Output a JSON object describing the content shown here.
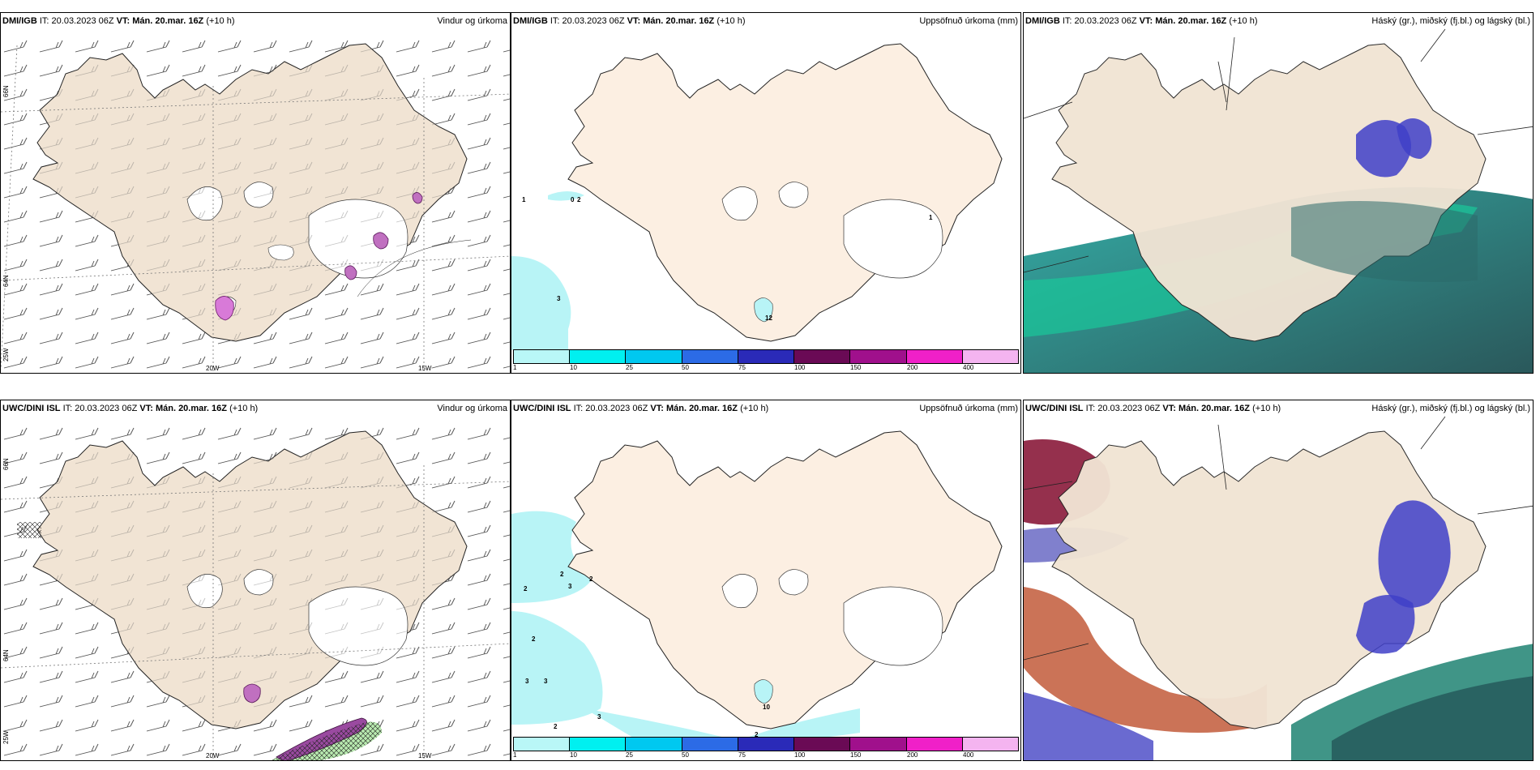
{
  "rows": [
    {
      "model": "DMI/IGB",
      "it_label": "IT:",
      "it_value": "20.03.2023 06Z",
      "vt_label": "VT:",
      "vt_value": "Mán. 20.mar. 16Z",
      "lead": "(+10 h)"
    },
    {
      "model": "UWC/DINI ISL",
      "it_label": "IT:",
      "it_value": "20.03.2023 06Z",
      "vt_label": "VT:",
      "vt_value": "Mán. 20.mar. 16Z",
      "lead": "(+10 h)"
    }
  ],
  "columns": [
    {
      "title": "Vindur og úrkoma"
    },
    {
      "title": "Uppsöfnuð úrkoma (mm)"
    },
    {
      "title": "Háský (gr.), miðský (fj.bl.) og lágský (bl.)"
    }
  ],
  "graticule": {
    "lon_a": "20W",
    "lon_b": "15W",
    "lat_a": "66N",
    "lat_b": "64N",
    "lat_c": "25W"
  },
  "colorbar": {
    "ticks": [
      "1",
      "10",
      "25",
      "50",
      "75",
      "100",
      "150",
      "200",
      "400"
    ],
    "colors": [
      "#b9f7f7",
      "#00f0f0",
      "#00c8f0",
      "#2c6be6",
      "#2a2ab8",
      "#6a0a55",
      "#a0108c",
      "#f020c8",
      "#f4b4f0"
    ]
  },
  "precip_labels_row1": [
    "1",
    "0",
    "2",
    "3",
    "1",
    "12"
  ],
  "precip_labels_row2": [
    "2",
    "2",
    "3",
    "2",
    "2",
    "3",
    "3",
    "3",
    "2",
    "2",
    "10"
  ],
  "colors": {
    "land": "#f1e4d4",
    "land_light": "#fcefe2",
    "ice": "#ffffff",
    "sea_precip": "#b8f4f6"
  }
}
